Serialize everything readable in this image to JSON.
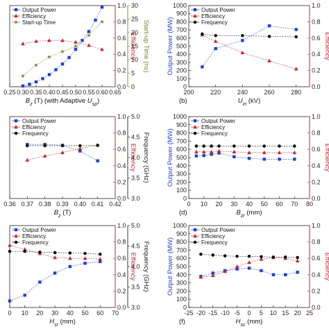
{
  "colors": {
    "output_power": "#1f3fd6",
    "efficiency": "#c8232c",
    "frequency": "#111111",
    "startup": "#6e8a2a",
    "axis": "#222222"
  },
  "chart_data": [
    {
      "type": "line",
      "panel_label": "",
      "xlabel": "B_z (T) (with Adaptive U_sp)",
      "xlabel_main": "B",
      "xlabel_sub": "z",
      "xlabel_rest": " (T) (with Adaptive ",
      "xlabel_main2": "U",
      "xlabel_sub2": "sp",
      "xlabel_tail": ")",
      "xlim": [
        0.25,
        0.65
      ],
      "xticks": [
        "0.25",
        "0.30",
        "0.35",
        "0.40",
        "0.45",
        "0.50",
        "0.55",
        "0.60",
        "0.65"
      ],
      "xtick_values": [
        0.25,
        0.3,
        0.35,
        0.4,
        0.45,
        0.5,
        0.55,
        0.6,
        0.65
      ],
      "ylim": [
        0,
        1.0
      ],
      "yticks": [],
      "ylabel": "",
      "y2lim": [
        0,
        1.0
      ],
      "y2ticks": [
        "0.0",
        "0.2",
        "0.4",
        "0.6",
        "0.8",
        "1.0"
      ],
      "y2label": "Efficiency",
      "y3lim": [
        0,
        30
      ],
      "y3ticks": [
        "0",
        "5",
        "10",
        "15",
        "20",
        "25",
        "30"
      ],
      "y3label": "Start-up Time (ns)",
      "legend": [
        "Output Power",
        "Efficiency",
        "Start-up Time"
      ],
      "series": [
        {
          "name": "Output Power",
          "axis": "left",
          "marker": "square",
          "x": [
            0.3,
            0.325,
            0.35,
            0.375,
            0.4,
            0.425,
            0.45,
            0.475,
            0.5,
            0.525,
            0.55,
            0.575,
            0.6
          ],
          "values": [
            0.01,
            0.03,
            0.06,
            0.1,
            0.15,
            0.21,
            0.28,
            0.36,
            0.46,
            0.57,
            0.68,
            0.82,
            0.98
          ]
        },
        {
          "name": "Efficiency",
          "axis": "right",
          "marker": "triangle",
          "x": [
            0.3,
            0.35,
            0.4,
            0.45,
            0.5,
            0.55,
            0.6
          ],
          "values": [
            0.53,
            0.56,
            0.57,
            0.57,
            0.55,
            0.51,
            0.46
          ]
        },
        {
          "name": "Start-up Time",
          "axis": "right2",
          "marker": "star",
          "x": [
            0.3,
            0.35,
            0.4,
            0.45,
            0.5,
            0.55,
            0.6
          ],
          "values": [
            4,
            8,
            11,
            13,
            15,
            19,
            24
          ]
        }
      ]
    },
    {
      "type": "line",
      "panel_label": "(b)",
      "xlabel_main": "U",
      "xlabel_sub": "in",
      "xlabel_rest": " (kV)",
      "xlim": [
        200,
        290
      ],
      "xticks": [
        "200",
        "220",
        "240",
        "260",
        "280"
      ],
      "xtick_values": [
        200,
        220,
        240,
        260,
        280
      ],
      "ylim": [
        0,
        1000
      ],
      "yticks": [
        "0",
        "100",
        "200",
        "300",
        "400",
        "500",
        "600",
        "700",
        "800",
        "900",
        "1000"
      ],
      "ylabel": "Output Power (MW)",
      "y2lim": [
        0,
        1.0
      ],
      "y2ticks": [
        "0.0",
        "0.2",
        "0.4",
        "0.6",
        "0.8",
        "1.0"
      ],
      "y2label": "Efficiency",
      "legend": [
        "Output Power",
        "Efficiency",
        "Frequency"
      ],
      "series": [
        {
          "name": "Output Power",
          "axis": "left",
          "marker": "square",
          "x": [
            210,
            220,
            240,
            260,
            280
          ],
          "values": [
            245,
            470,
            570,
            750,
            705
          ]
        },
        {
          "name": "Efficiency",
          "axis": "right",
          "marker": "triangle",
          "x": [
            210,
            220,
            240,
            260,
            280
          ],
          "values": [
            0.64,
            0.56,
            0.42,
            0.32,
            0.22
          ]
        },
        {
          "name": "Frequency",
          "axis": "left",
          "marker": "circle",
          "x": [
            210,
            220,
            240,
            260,
            280
          ],
          "values": [
            650,
            630,
            630,
            620,
            615
          ]
        }
      ]
    },
    {
      "type": "line",
      "panel_label": "",
      "xlabel_main": "B",
      "xlabel_sub": "z",
      "xlabel_rest": " (T)",
      "xlim": [
        0.36,
        0.42
      ],
      "xticks": [
        "0.36",
        "0.37",
        "0.38",
        "0.39",
        "0.40",
        "0.41",
        "0.42"
      ],
      "xtick_values": [
        0.36,
        0.37,
        0.38,
        0.39,
        0.4,
        0.41,
        0.42
      ],
      "ylim": [
        0,
        1.0
      ],
      "yticks": [],
      "y2lim": [
        0,
        1.0
      ],
      "y2ticks": [
        "0.0",
        "0.2",
        "0.4",
        "0.6",
        "0.8",
        "1.0"
      ],
      "y2label": "Efficiency",
      "y3lim": [
        3.0,
        5.0
      ],
      "y3ticks": [
        "3.0",
        "3.5",
        "4.0",
        "4.5",
        "5.0"
      ],
      "y3label": "Frequency (GHz)",
      "legend": [
        "Output Power",
        "Efficiency",
        "Frequency"
      ],
      "series": [
        {
          "name": "Output Power",
          "axis": "left",
          "marker": "square",
          "x": [
            0.37,
            0.38,
            0.39,
            0.4,
            0.41
          ],
          "values": [
            0.66,
            0.66,
            0.65,
            0.58,
            0.46
          ]
        },
        {
          "name": "Efficiency",
          "axis": "right",
          "marker": "triangle",
          "x": [
            0.37,
            0.38,
            0.39,
            0.4,
            0.41
          ],
          "values": [
            0.47,
            0.52,
            0.56,
            0.61,
            0.65
          ]
        },
        {
          "name": "Frequency",
          "axis": "right2",
          "marker": "circle",
          "x": [
            0.37,
            0.38,
            0.39,
            0.4,
            0.41
          ],
          "values": [
            4.29,
            4.29,
            4.29,
            4.29,
            4.3
          ]
        }
      ]
    },
    {
      "type": "line",
      "panel_label": "(d)",
      "xlabel_main": "B",
      "xlabel_sub": "zr",
      "xlabel_rest": " (mm)",
      "xlim": [
        0,
        80
      ],
      "xticks": [
        "0",
        "10",
        "20",
        "30",
        "40",
        "50",
        "60",
        "70",
        "80"
      ],
      "xtick_values": [
        0,
        10,
        20,
        30,
        40,
        50,
        60,
        70,
        80
      ],
      "ylim": [
        0,
        1000
      ],
      "yticks": [
        "0",
        "100",
        "200",
        "300",
        "400",
        "500",
        "600",
        "700",
        "800",
        "900",
        "1000"
      ],
      "ylabel": "Output Power (MW)",
      "y2lim": [
        0,
        1.0
      ],
      "y2ticks": [
        "0.0",
        "0.2",
        "0.4",
        "0.6",
        "0.8",
        "1.0"
      ],
      "y2label": "Efficiency",
      "legend": [
        "Output Power",
        "Efficiency",
        "Frequency"
      ],
      "series": [
        {
          "name": "Output Power",
          "axis": "left",
          "marker": "square",
          "x": [
            5,
            10,
            15,
            20,
            30,
            40,
            50,
            60,
            70
          ],
          "values": [
            520,
            525,
            540,
            555,
            510,
            490,
            480,
            480,
            480
          ]
        },
        {
          "name": "Efficiency",
          "axis": "right",
          "marker": "triangle",
          "x": [
            5,
            10,
            15,
            20,
            30,
            40,
            50,
            60,
            70
          ],
          "values": [
            0.57,
            0.57,
            0.57,
            0.58,
            0.57,
            0.56,
            0.56,
            0.56,
            0.56
          ]
        },
        {
          "name": "Frequency",
          "axis": "left",
          "marker": "circle",
          "x": [
            5,
            10,
            15,
            20,
            30,
            40,
            50,
            60,
            70
          ],
          "values": [
            640,
            640,
            640,
            640,
            640,
            640,
            640,
            640,
            640
          ]
        }
      ]
    },
    {
      "type": "line",
      "panel_label": "",
      "xlabel_main": "H",
      "xlabel_sub": "sr",
      "xlabel_rest": " (mm)",
      "xlim": [
        0,
        70
      ],
      "xticks": [
        "0",
        "10",
        "20",
        "30",
        "40",
        "50",
        "60",
        "70"
      ],
      "xtick_values": [
        0,
        10,
        20,
        30,
        40,
        50,
        60,
        70
      ],
      "ylim": [
        0,
        1.0
      ],
      "yticks": [],
      "y2lim": [
        0,
        1.0
      ],
      "y2ticks": [
        "0.0",
        "0.2",
        "0.4",
        "0.6",
        "0.8",
        "1.0"
      ],
      "y2label": "Efficiency",
      "y3lim": [
        3.0,
        5.0
      ],
      "y3ticks": [
        "3.0",
        "3.5",
        "4.0",
        "4.5",
        "5.0"
      ],
      "y3label": "Frequency (GHz)",
      "legend": [
        "Output Power",
        "Efficiency",
        "Frequency"
      ],
      "series": [
        {
          "name": "Output Power",
          "axis": "left",
          "marker": "square",
          "x": [
            0,
            10,
            20,
            30,
            40,
            50,
            60
          ],
          "values": [
            0.08,
            0.15,
            0.31,
            0.42,
            0.5,
            0.54,
            0.56
          ]
        },
        {
          "name": "Efficiency",
          "axis": "right",
          "marker": "triangle",
          "x": [
            0,
            10,
            20,
            30,
            40,
            50,
            60
          ],
          "values": [
            0.76,
            0.71,
            0.66,
            0.61,
            0.6,
            0.6,
            0.59
          ]
        },
        {
          "name": "Frequency",
          "axis": "right2",
          "marker": "circle",
          "x": [
            0,
            10,
            20,
            30,
            40,
            50,
            60
          ],
          "values": [
            4.37,
            4.37,
            4.35,
            4.34,
            4.33,
            4.32,
            4.3
          ]
        }
      ]
    },
    {
      "type": "line",
      "panel_label": "(f)",
      "xlabel_main": "H",
      "xlabel_sub": "sc",
      "xlabel_rest": " (mm)",
      "xlim": [
        -25,
        25
      ],
      "xticks": [
        "-25",
        "-20",
        "-15",
        "-10",
        "-5",
        "0",
        "5",
        "10",
        "15",
        "20",
        "25"
      ],
      "xtick_values": [
        -25,
        -20,
        -15,
        -10,
        -5,
        0,
        5,
        10,
        15,
        20,
        25
      ],
      "ylim": [
        0,
        1000
      ],
      "yticks": [
        "0",
        "100",
        "200",
        "300",
        "400",
        "500",
        "600",
        "700",
        "800",
        "900",
        "1000"
      ],
      "ylabel": "Output Power (MW)",
      "y2lim": [
        0,
        1.0
      ],
      "y2ticks": [
        "0.0",
        "0.2",
        "0.4",
        "0.6",
        "0.8",
        "1.0"
      ],
      "y2label": "Efficiency",
      "legend": [
        "Output Power",
        "Efficiency",
        "Frequency"
      ],
      "series": [
        {
          "name": "Output Power",
          "axis": "left",
          "marker": "square",
          "x": [
            -20,
            -15,
            -10,
            -5,
            0,
            5,
            10,
            15,
            20
          ],
          "values": [
            380,
            420,
            450,
            470,
            480,
            450,
            400,
            400,
            430
          ]
        },
        {
          "name": "Efficiency",
          "axis": "right",
          "marker": "triangle",
          "x": [
            -20,
            -15,
            -10,
            -5,
            0,
            5,
            10,
            15,
            20
          ],
          "values": [
            0.37,
            0.39,
            0.44,
            0.5,
            0.55,
            0.59,
            0.61,
            0.6,
            0.57
          ]
        },
        {
          "name": "Frequency",
          "axis": "left",
          "marker": "circle",
          "x": [
            -20,
            -15,
            -10,
            -5,
            0,
            5,
            10,
            15,
            20
          ],
          "values": [
            650,
            640,
            630,
            625,
            625,
            620,
            615,
            615,
            610
          ]
        }
      ]
    }
  ]
}
